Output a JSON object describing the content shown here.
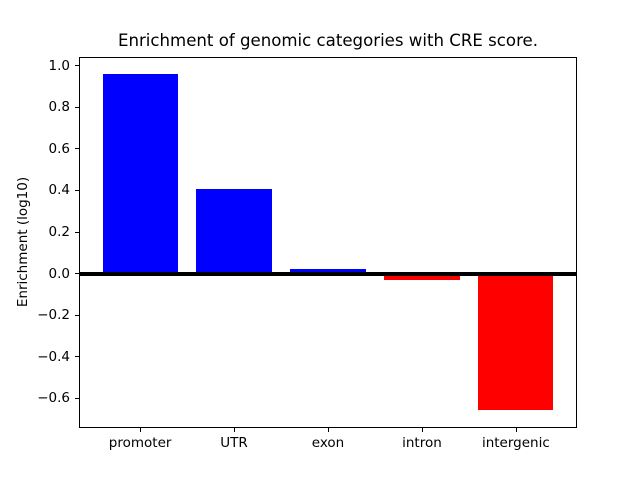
{
  "chart_data": {
    "type": "bar",
    "title": "Enrichment of genomic categories with CRE score.",
    "xlabel": "",
    "ylabel": "Enrichment (log10)",
    "categories": [
      "promoter",
      "UTR",
      "exon",
      "intron",
      "intergenic"
    ],
    "values": [
      0.96,
      0.405,
      0.02,
      -0.03,
      -0.655
    ],
    "positive_color": "#0000ff",
    "negative_color": "#ff0000",
    "background_color": "#ffffff",
    "axis_color": "#000000",
    "ylim": [
      -0.74,
      1.04
    ],
    "yticks": [
      1.0,
      0.8,
      0.6,
      0.4,
      0.2,
      0.0,
      -0.2,
      -0.4,
      -0.6
    ],
    "ytick_labels": [
      "1.0",
      "0.8",
      "0.6",
      "0.4",
      "0.2",
      "0.0",
      "−0.2",
      "−0.4",
      "−0.6"
    ],
    "grid": false,
    "legend_position": "none",
    "zero_baseline": true,
    "bar_width_fraction": 0.8
  }
}
